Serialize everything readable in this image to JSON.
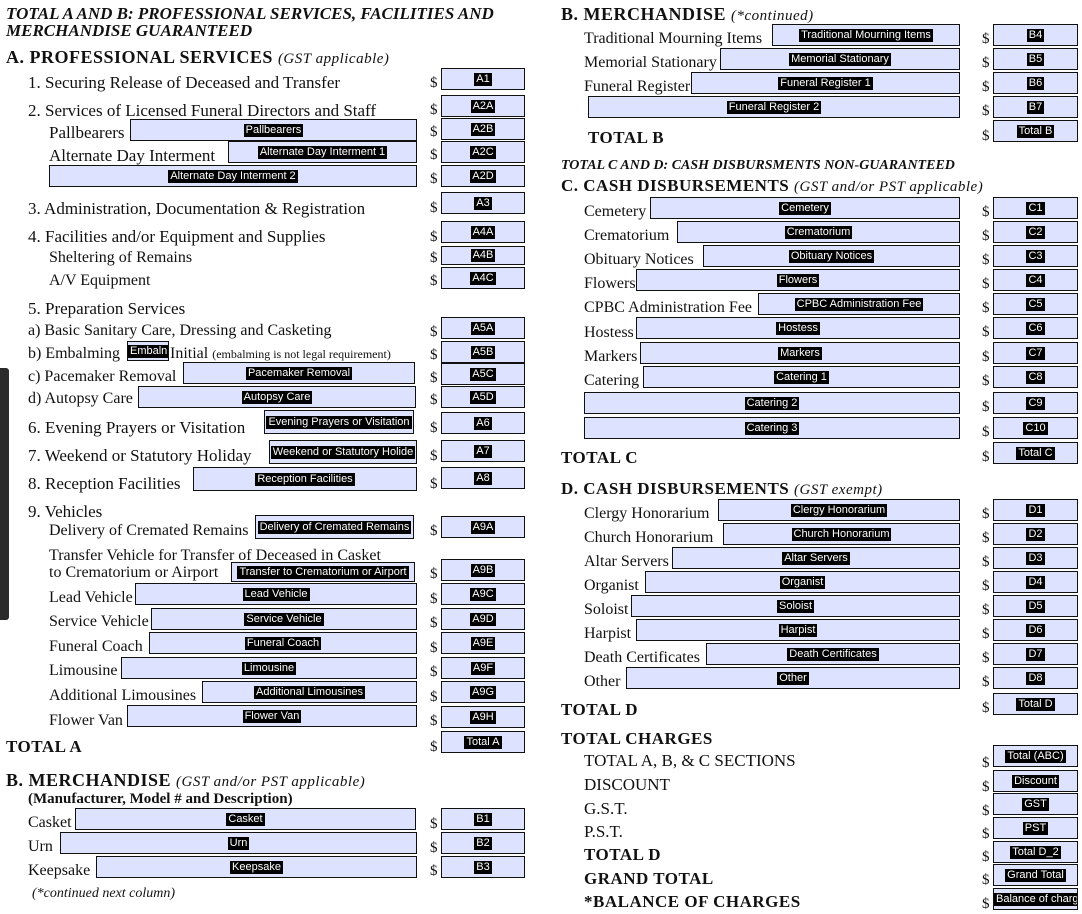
{
  "left": {
    "title_line1": "TOTAL A AND B: PROFESSIONAL SERVICES, FACILITIES AND",
    "title_line2": "MERCHANDISE GUARANTEED",
    "secA_title": "A. PROFESSIONAL SERVICES",
    "secA_note": "(GST applicable)",
    "l1": "1.  Securing Release of Deceased and Transfer",
    "l2": "2.  Services of Licensed Funeral Directors and Staff",
    "pallbearers": "Pallbearers",
    "alt_day": "Alternate Day Interment",
    "l3": "3.  Administration, Documentation & Registration",
    "l4": "4.  Facilities and/or Equipment and Supplies",
    "sheltering": "Sheltering of Remains",
    "av": "A/V Equipment",
    "l5": "5.  Preparation Services",
    "a5a": "a)  Basic Sanitary Care, Dressing and Casketing",
    "a5b_pre": "b)  Embalming",
    "a5b_post": "Initial",
    "a5b_note": "(embalming is not legal requirement)",
    "a5c": "c)  Pacemaker Removal",
    "a5d": "d)  Autopsy Care",
    "l6": "6.  Evening Prayers or Visitation",
    "l7": "7.  Weekend or Statutory Holiday",
    "l8": "8.  Reception Facilities",
    "l9": "9.  Vehicles",
    "delivery": "Delivery of Cremated Remains",
    "transfer1": "Transfer Vehicle for Transfer of Deceased in Casket",
    "transfer2": "to Crematorium or Airport",
    "lead": "Lead Vehicle",
    "service": "Service Vehicle",
    "coach": "Funeral Coach",
    "limo": "Limousine",
    "addlimo": "Additional Limousines",
    "flower": "Flower Van",
    "totalA": "TOTAL A",
    "secB_title": "B. MERCHANDISE",
    "secB_note": "(GST and/or PST applicable)",
    "secB_sub": "(Manufacturer, Model # and Description)",
    "casket": "Casket",
    "urn": "Urn",
    "keepsake": "Keepsake",
    "cont_next": "(*continued next column)"
  },
  "right": {
    "secB_cont": "B. MERCHANDISE",
    "secB_cont_note": "(*continued)",
    "trad": "Traditional Mourning Items",
    "memstat": "Memorial Stationary",
    "funreg": "Funeral Register",
    "totalB": "TOTAL  B",
    "cd_title": "TOTAL C AND D: CASH DISBURSMENTS NON-GUARANTEED",
    "secC_title": "C. CASH DISBURSEMENTS",
    "secC_note": "(GST and/or PST applicable)",
    "cemetery": "Cemetery",
    "crematorium": "Crematorium",
    "obituary": "Obituary Notices",
    "flowers": "Flowers",
    "cpbc": "CPBC Administration Fee",
    "hostess": "Hostess",
    "markers": "Markers",
    "catering": "Catering",
    "totalC": "TOTAL  C",
    "secD_title": "D. CASH DISBURSEMENTS",
    "secD_note": "(GST  exempt)",
    "clergy": "Clergy Honorarium",
    "church": "Church Honorarium",
    "altar": "Altar Servers",
    "organist": "Organist",
    "soloist": "Soloist",
    "harpist": "Harpist",
    "death": "Death Certificates",
    "other": "Other",
    "totalD": "TOTAL  D",
    "totalCharges": "TOTAL CHARGES",
    "tabc": "TOTAL A, B, & C SECTIONS",
    "discount": "DISCOUNT",
    "gst": "G.S.T.",
    "pst": "P.S.T.",
    "totalD2": "TOTAL  D",
    "grand": "GRAND TOTAL",
    "balance": "*BALANCE OF CHARGES"
  },
  "currency": "$",
  "fields": {
    "A1": "A1",
    "A2A": "A2A",
    "Pallbearers": "Pallbearers",
    "A2B": "A2B",
    "AltDay1": "Alternate Day Interment 1",
    "A2C": "A2C",
    "AltDay2": "Alternate Day Interment 2",
    "A2D": "A2D",
    "A3": "A3",
    "A4A": "A4A",
    "A4B": "A4B",
    "A4C": "A4C",
    "A5A": "A5A",
    "Embalm": "Embaln",
    "A5B": "A5B",
    "Pacemaker": "Pacemaker Removal",
    "A5C": "A5C",
    "Autopsy": "Autopsy Care",
    "A5D": "A5D",
    "Evening": "Evening Prayers or Visitation",
    "A6": "A6",
    "Weekend": "Weekend or Statutory Holide",
    "A7": "A7",
    "Reception": "Reception Facilities",
    "A8": "A8",
    "Delivery": "Delivery of Cremated Remains",
    "A9A": "A9A",
    "TransferF": "Transfer to Crematorium or Airport",
    "A9B": "A9B",
    "Lead": "Lead Vehicle",
    "A9C": "A9C",
    "Service": "Service Vehicle",
    "A9D": "A9D",
    "Coach": "Funeral Coach",
    "A9E": "A9E",
    "Limo": "Limousine",
    "A9F": "A9F",
    "AddLimo": "Additional Limousines",
    "A9G": "A9G",
    "Flower": "Flower Van",
    "A9H": "A9H",
    "TotalA": "Total A",
    "Casket": "Casket",
    "B1": "B1",
    "Urn": "Urn",
    "B2": "B2",
    "Keepsake": "Keepsake",
    "B3": "B3",
    "Trad": "Traditional Mourning Items",
    "B4": "B4",
    "MemStat": "Memorial Stationary",
    "B5": "B5",
    "FunReg1": "Funeral Register 1",
    "B6": "B6",
    "FunReg2": "Funeral Register 2",
    "B7": "B7",
    "TotalB": "Total B",
    "Cemetery": "Cemetery",
    "C1": "C1",
    "Crematorium": "Crematorium",
    "C2": "C2",
    "Obituary": "Obituary Notices",
    "C3": "C3",
    "Flowers": "Flowers",
    "C4": "C4",
    "CPBC": "CPBC Administration Fee",
    "C5": "C5",
    "Hostess": "Hostess",
    "C6": "C6",
    "Markers": "Markers",
    "C7": "C7",
    "Catering1": "Catering 1",
    "C8": "C8",
    "Catering2": "Catering 2",
    "C9": "C9",
    "Catering3": "Catering 3",
    "C10": "C10",
    "TotalC": "Total C",
    "Clergy": "Clergy Honorarium",
    "D1": "D1",
    "Church": "Church Honorarium",
    "D2": "D2",
    "Altar": "Altar Servers",
    "D3": "D3",
    "Organist": "Organist",
    "D4": "D4",
    "Soloist": "Soloist",
    "D5": "D5",
    "Harpist": "Harpist",
    "D6": "D6",
    "Death": "Death Certificates",
    "D7": "D7",
    "Other": "Other",
    "D8": "D8",
    "TotalD": "Total D",
    "TotalABC": "Total (ABC)",
    "Discount": "Discount",
    "GST": "GST",
    "PST": "PST",
    "TotalD_2": "Total D_2",
    "GrandTotal": "Grand Total",
    "Balance": "Balance of charg"
  }
}
